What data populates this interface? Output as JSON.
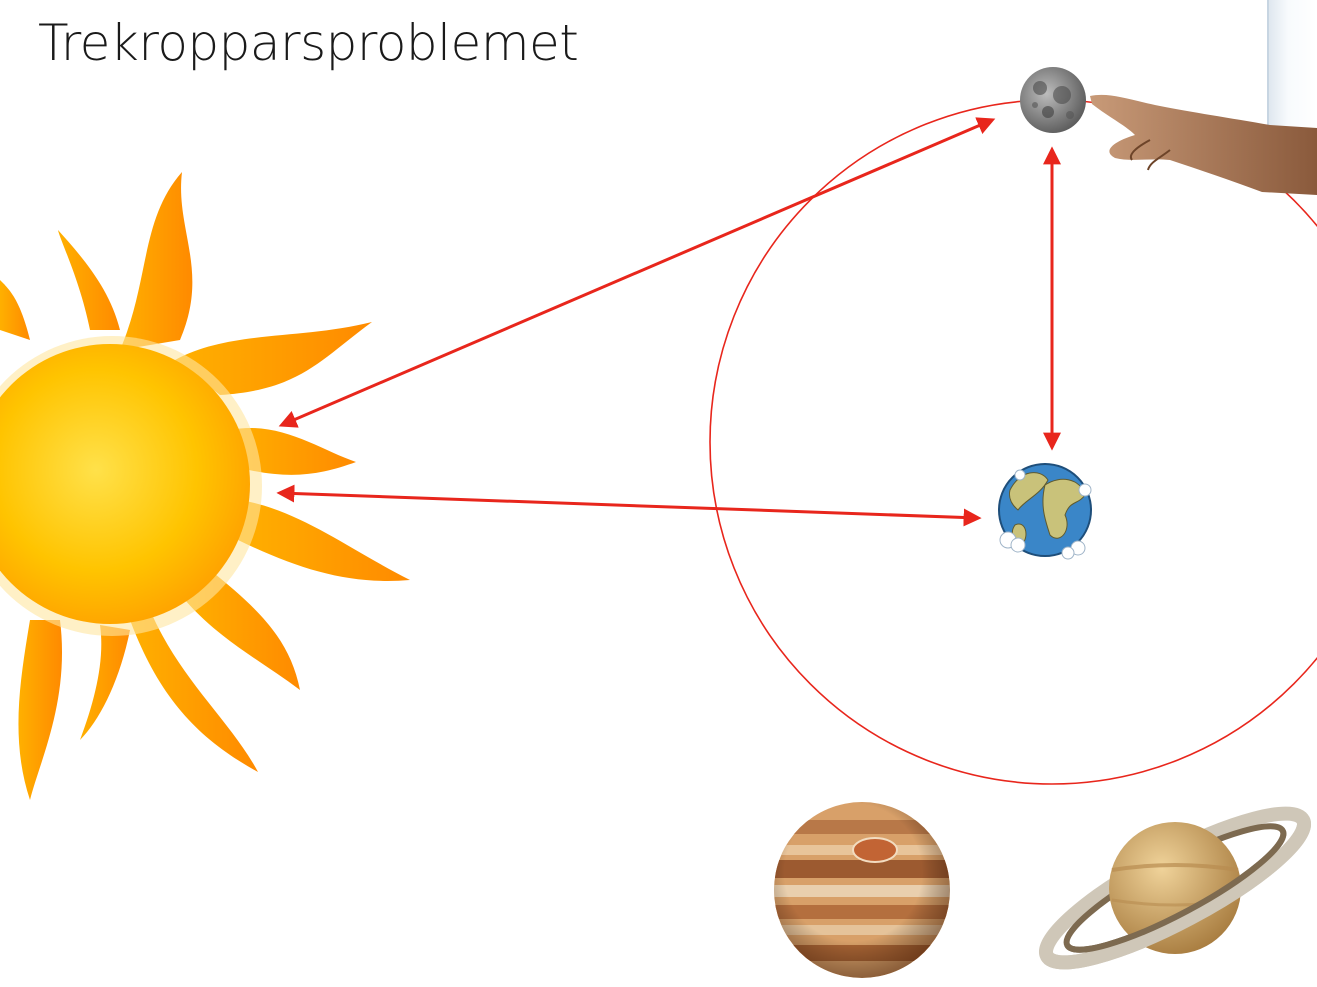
{
  "slide": {
    "title": "Trekropparsproblemet"
  },
  "bodies": [
    {
      "name": "sun",
      "icon": "sun-icon"
    },
    {
      "name": "earth",
      "icon": "earth-icon"
    },
    {
      "name": "moon",
      "icon": "moon-icon"
    },
    {
      "name": "jupiter",
      "icon": "jupiter-icon"
    },
    {
      "name": "saturn",
      "icon": "saturn-icon"
    },
    {
      "name": "hand",
      "icon": "pointing-hand-icon"
    }
  ],
  "colors": {
    "arrow": "#e8261c",
    "orbit": "#e8261c",
    "sun_core": "#ffb300",
    "sun_rays": "#ff9a00",
    "earth_ocean": "#3a86c8",
    "earth_land": "#c9c27a",
    "moon": "#8a8a8a",
    "jupiter": "#c98a4a",
    "saturn": "#d6ab6c"
  }
}
